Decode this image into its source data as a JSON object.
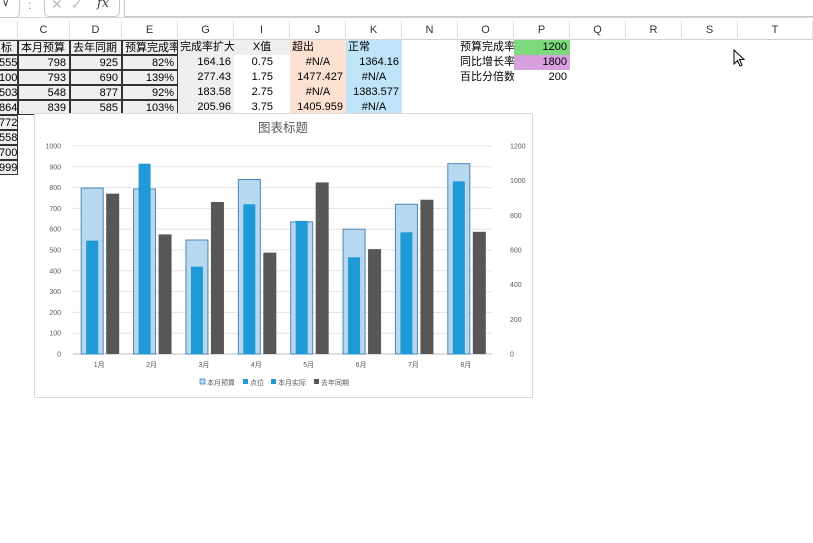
{
  "formula_bar": {
    "name_box_symbol": "∨",
    "separator": ":",
    "cancel_symbol": "✕",
    "enter_symbol": "✓",
    "fx_label": "fx",
    "formula": ""
  },
  "columns": [
    "C",
    "D",
    "E",
    "G",
    "I",
    "J",
    "K",
    "N",
    "O",
    "P",
    "Q",
    "R",
    "S",
    "T"
  ],
  "table": {
    "headers": [
      "标",
      "本月预算",
      "去年同期",
      "预算完成率",
      "完成率扩大",
      "X值",
      "超出",
      "正常"
    ],
    "rows": [
      [
        "555",
        "798",
        "925",
        "82%",
        "164.16",
        "0.75",
        "#N/A",
        "1364.16"
      ],
      [
        "100",
        "793",
        "690",
        "139%",
        "277.43",
        "1.75",
        "1477.427",
        "#N/A"
      ],
      [
        "503",
        "548",
        "877",
        "92%",
        "183.58",
        "2.75",
        "#N/A",
        "1383.577"
      ],
      [
        "864",
        "839",
        "585",
        "103%",
        "205.96",
        "3.75",
        "1405.959",
        "#N/A"
      ]
    ],
    "extra_col_a": [
      "772",
      "558",
      "700",
      "999"
    ]
  },
  "params": [
    {
      "label": "预算完成率",
      "value": "1200",
      "color": "#7ed97e"
    },
    {
      "label": "同比增长率",
      "value": "1800",
      "color": "#d9a0e0"
    },
    {
      "label": "百比分倍数",
      "value": "200",
      "color": ""
    }
  ],
  "chart_data": {
    "type": "bar",
    "title": "图表标题",
    "categories": [
      "1月",
      "2月",
      "3月",
      "4月",
      "5月",
      "6月",
      "7月",
      "8月"
    ],
    "ylim": [
      0,
      1000
    ],
    "yticks": [
      0,
      100,
      200,
      300,
      400,
      500,
      600,
      700,
      800,
      900,
      1000
    ],
    "y2lim": [
      0,
      1200
    ],
    "y2ticks": [
      0,
      200,
      400,
      600,
      800,
      1000,
      1200
    ],
    "grid": true,
    "legend_position": "bottom",
    "series": [
      {
        "name": "本月预算",
        "values": [
          798,
          793,
          548,
          839,
          635,
          600,
          720,
          915
        ],
        "color": "#b8d8f0",
        "stroke": "#4a86b8"
      },
      {
        "name": "点位",
        "values": [
          0,
          0,
          0,
          0,
          0,
          0,
          0,
          0
        ],
        "color": "#1f9ad6"
      },
      {
        "name": "本月实际",
        "values": [
          545,
          915,
          420,
          720,
          640,
          465,
          585,
          830
        ],
        "color": "#1f9ad6"
      },
      {
        "name": "去年同期",
        "values": [
          925,
          690,
          877,
          585,
          990,
          605,
          890,
          705
        ],
        "color": "#575757",
        "axis": "secondary"
      }
    ]
  }
}
